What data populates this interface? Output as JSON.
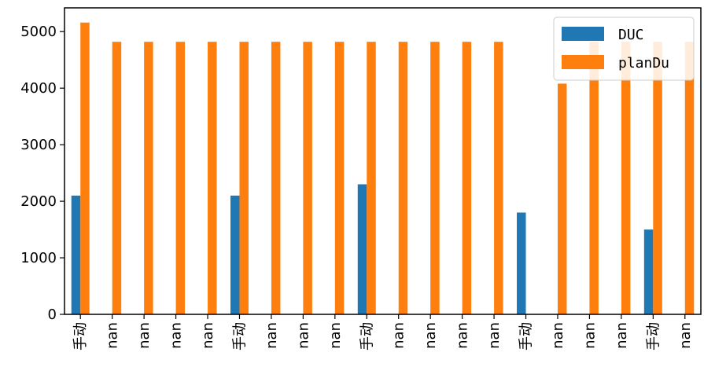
{
  "chart_data": {
    "type": "bar",
    "categories": [
      "手动",
      "nan",
      "nan",
      "nan",
      "nan",
      "手动",
      "nan",
      "nan",
      "nan",
      "手动",
      "nan",
      "nan",
      "nan",
      "nan",
      "手动",
      "nan",
      "nan",
      "nan",
      "手动",
      "nan"
    ],
    "series": [
      {
        "name": "DUC",
        "color": "#1f77b4",
        "values": [
          2100,
          0,
          0,
          0,
          0,
          2100,
          0,
          0,
          0,
          2300,
          0,
          0,
          0,
          0,
          1800,
          0,
          0,
          0,
          1500,
          0
        ]
      },
      {
        "name": "planDu",
        "color": "#ff7f0e",
        "values": [
          5160,
          4820,
          4820,
          4820,
          4820,
          4820,
          4820,
          4820,
          4820,
          4820,
          4820,
          4820,
          4820,
          4820,
          0,
          4080,
          4820,
          4820,
          4820,
          4820
        ]
      }
    ],
    "yticks": [
      0,
      1000,
      2000,
      3000,
      4000,
      5000
    ],
    "ylim": [
      0,
      5420
    ],
    "legend_position": "top-right",
    "grid": false
  }
}
